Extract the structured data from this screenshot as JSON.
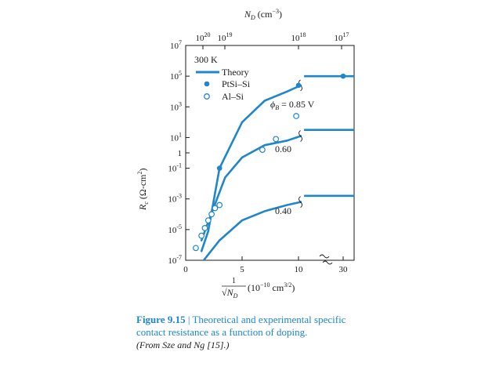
{
  "chart_data": {
    "type": "line",
    "title": "",
    "top_axis_label": "N_D (cm^-3)",
    "top_ticks": [
      "10^20",
      "10^19",
      "10^18",
      "10^17"
    ],
    "xlabel": "1/√N_D (10^-10 cm^3/2)",
    "ylabel": "R_c (Ω-cm^2)",
    "x_ticks": [
      "0",
      "5",
      "10",
      "30"
    ],
    "y_ticks": [
      "10^7",
      "10^5",
      "10^3",
      "10^1",
      "1",
      "10^-1",
      "10^-3",
      "10^-5",
      "10^-7"
    ],
    "ylim_log10": [
      -7,
      7
    ],
    "temperature": "300 K",
    "legend": {
      "placement": "top-left",
      "entries": [
        "Theory",
        "PtSi–Si",
        "Al–Si"
      ]
    },
    "series": [
      {
        "name": "Theory",
        "label": "ϕB = 0.85 V",
        "points": [
          [
            1.4,
            -6.4
          ],
          [
            2.0,
            -5.1
          ],
          [
            3.0,
            -1.0
          ],
          [
            5.0,
            2.0
          ],
          [
            7.0,
            3.4
          ],
          [
            9.0,
            4.0
          ],
          [
            11.0,
            4.4
          ],
          [
            30.0,
            5.0
          ]
        ]
      },
      {
        "name": "Theory",
        "label": "0.60",
        "points": [
          [
            1.4,
            -5.7
          ],
          [
            2.0,
            -4.5
          ],
          [
            3.5,
            -1.6
          ],
          [
            5.0,
            -0.3
          ],
          [
            7.0,
            0.5
          ],
          [
            9.0,
            0.8
          ],
          [
            11.0,
            1.1
          ],
          [
            30.0,
            1.5
          ]
        ]
      },
      {
        "name": "Theory",
        "label": "0.40",
        "points": [
          [
            1.6,
            -7.0
          ],
          [
            3.0,
            -5.7
          ],
          [
            5.0,
            -4.4
          ],
          [
            7.0,
            -3.8
          ],
          [
            9.0,
            -3.4
          ],
          [
            11.0,
            -3.2
          ],
          [
            30.0,
            -2.8
          ]
        ]
      }
    ],
    "ptsi_points": [
      [
        3.0,
        -1.0
      ],
      [
        10.0,
        4.4
      ],
      [
        30.0,
        5.0
      ]
    ],
    "al_points": [
      [
        0.9,
        -6.2
      ],
      [
        1.4,
        -5.4
      ],
      [
        1.7,
        -4.9
      ],
      [
        2.0,
        -4.4
      ],
      [
        2.3,
        -4.0
      ],
      [
        2.6,
        -3.6
      ],
      [
        3.0,
        -3.4
      ],
      [
        6.8,
        0.2
      ],
      [
        8.0,
        0.9
      ],
      [
        9.8,
        2.4
      ]
    ]
  },
  "caption": {
    "figure_number": "Figure 9.15",
    "title": "Theoretical and experimental specific contact resistance as a function of doping.",
    "source": "(From Sze and Ng [15].)"
  }
}
